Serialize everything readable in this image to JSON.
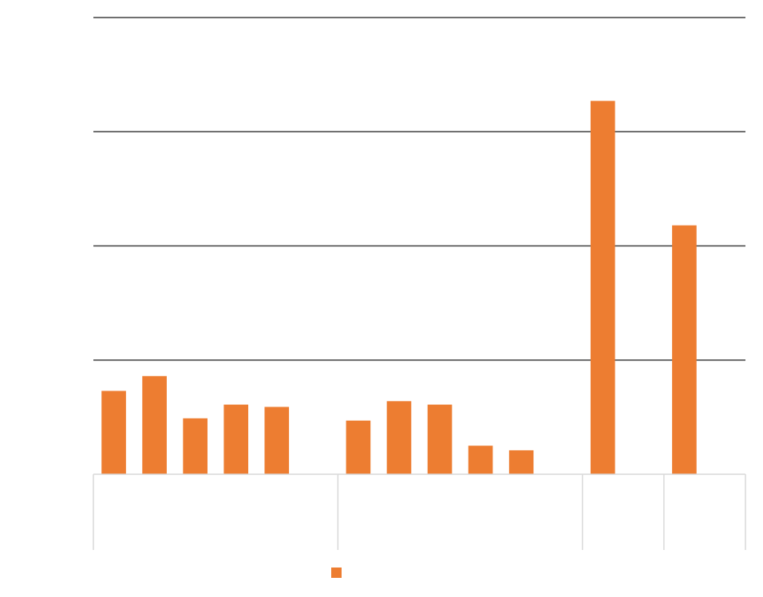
{
  "chart_data": {
    "type": "bar",
    "title": "",
    "xlabel": "",
    "ylabel": "",
    "ylim": [
      0,
      4
    ],
    "grid": true,
    "legend_position": "bottom",
    "groups": [
      {
        "label": "",
        "categories": [
          "",
          "",
          "",
          "",
          ""
        ],
        "values": [
          0.73,
          0.86,
          0.49,
          0.61,
          0.59
        ]
      },
      {
        "label": "",
        "categories": [
          "",
          "",
          "",
          "",
          ""
        ],
        "values": [
          0.47,
          0.64,
          0.61,
          0.25,
          0.21
        ]
      },
      {
        "label": "",
        "categories": [
          ""
        ],
        "values": [
          3.27
        ]
      },
      {
        "label": "",
        "categories": [
          ""
        ],
        "values": [
          2.18
        ]
      }
    ],
    "series": [
      {
        "name": "",
        "color": "#ED7D31"
      }
    ],
    "colors": {
      "bar": "#ED7D31",
      "gridline": "#404040",
      "group_divider": "#D9D9D9"
    }
  }
}
